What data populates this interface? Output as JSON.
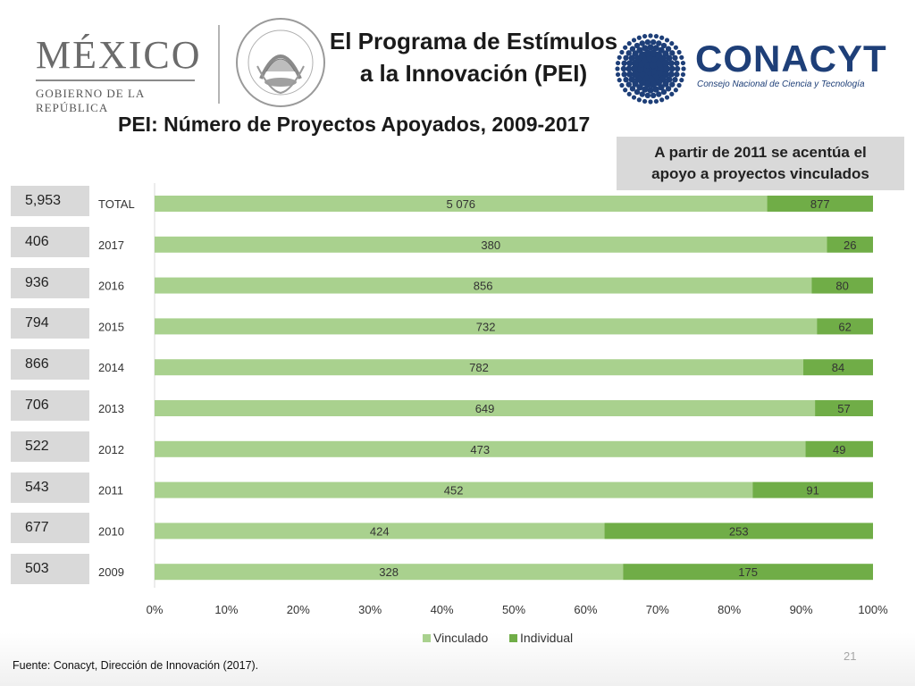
{
  "header": {
    "mexico_word": "MÉXICO",
    "mexico_sub": "GOBIERNO DE LA REPÚBLICA",
    "conacyt_word": "CONACYT",
    "conacyt_sub": "Consejo Nacional de Ciencia y Tecnología",
    "seal_icon": "national-seal-icon",
    "title_line1": "El Programa de Estímulos",
    "title_line2": "a la Innovación (PEI)"
  },
  "callout": {
    "line1": "A partir de 2011 se acentúa el",
    "line2": "apoyo a proyectos vinculados"
  },
  "totals": [
    "5,953",
    "406",
    "936",
    "794",
    "866",
    "706",
    "522",
    "543",
    "677",
    "503"
  ],
  "footer": {
    "source": "Fuente: Conacyt, Dirección de Innovación (2017).",
    "page_number": "21"
  },
  "chart_data": {
    "type": "bar",
    "orientation": "horizontal",
    "stacking": "percent",
    "title": "PEI: Número de Proyectos Apoyados, 2009-2017",
    "categories": [
      "TOTAL",
      "2017",
      "2016",
      "2015",
      "2014",
      "2013",
      "2012",
      "2011",
      "2010",
      "2009"
    ],
    "series": [
      {
        "name": "Vinculado",
        "color": "#a9d18e",
        "values": [
          5076,
          380,
          856,
          732,
          782,
          649,
          473,
          452,
          424,
          328
        ],
        "labels": [
          "5 076",
          "380",
          "856",
          "732",
          "782",
          "649",
          "473",
          "452",
          "424",
          "328"
        ]
      },
      {
        "name": "Individual",
        "color": "#70ad47",
        "values": [
          877,
          26,
          80,
          62,
          84,
          57,
          49,
          91,
          253,
          175
        ],
        "labels": [
          "877",
          "26",
          "80",
          "62",
          "84",
          "57",
          "49",
          "91",
          "253",
          "175"
        ]
      }
    ],
    "xlim": [
      0,
      100
    ],
    "xticks": [
      "0%",
      "10%",
      "20%",
      "30%",
      "40%",
      "50%",
      "60%",
      "70%",
      "80%",
      "90%",
      "100%"
    ],
    "grid": false,
    "legend": "bottom"
  }
}
